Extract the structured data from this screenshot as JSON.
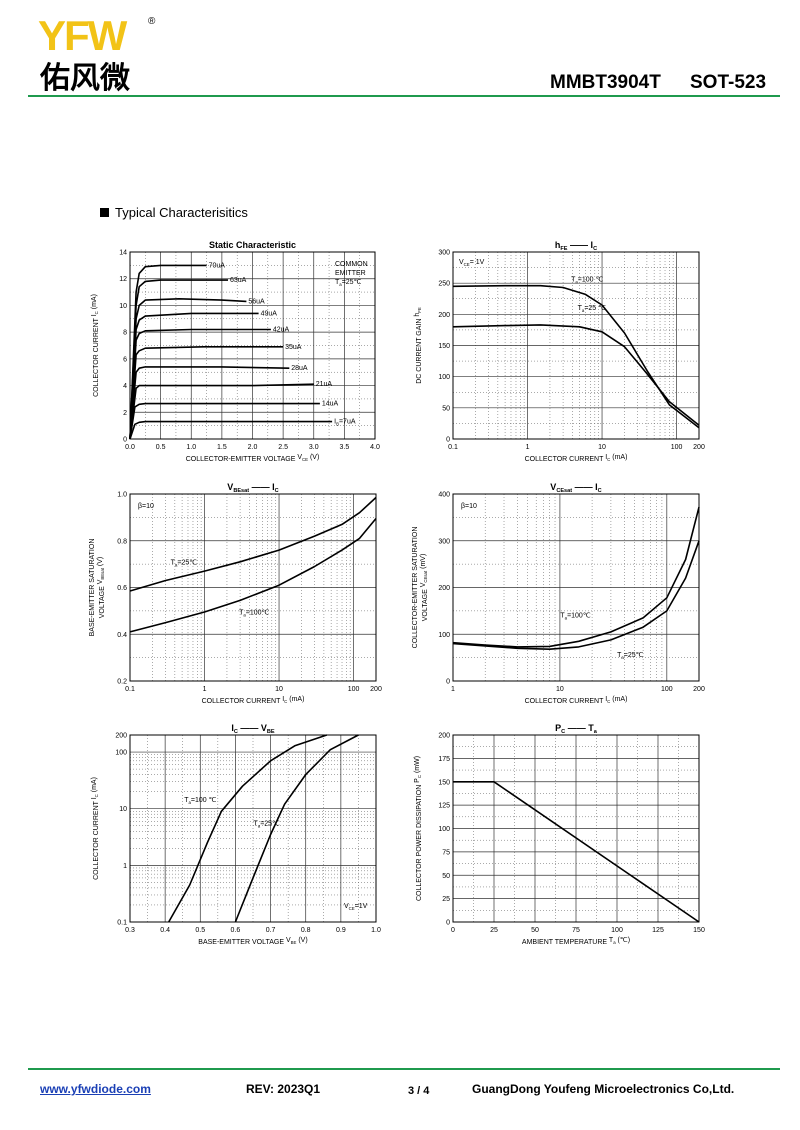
{
  "header": {
    "logo_text": "YFW",
    "logo_cn": "佑风微",
    "registered_mark": "®",
    "part_number": "MMBT3904T",
    "package": "SOT-523"
  },
  "section_title": "Typical  Characterisitics",
  "colors": {
    "brand_green": "#1f9a4e",
    "brand_yellow": "#f2c317",
    "link_blue": "#1a3fb5"
  },
  "footer": {
    "url": "www.yfwdiode.com",
    "rev": "REV: 2023Q1",
    "page": "3 / 4",
    "company": "GuangDong Youfeng Microelectronics Co,Ltd."
  },
  "chart_data": [
    {
      "id": "static",
      "type": "line",
      "title": "Static Characteristic",
      "xlabel": "COLLECTOR-EMITTER VOLTAGE",
      "xlabel_sym": "V",
      "xlabel_sub": "CE",
      "xlabel_unit": "(V)",
      "ylabel": "COLLECTOR CURRENT",
      "ylabel_sym": "I",
      "ylabel_sub": "C",
      "ylabel_unit": "(mA)",
      "xlim": [
        0,
        4
      ],
      "ylim": [
        0,
        14
      ],
      "xticks": [
        "0.0",
        "0.5",
        "1.0",
        "1.5",
        "2.0",
        "2.5",
        "3.0",
        "3.5",
        "4.0"
      ],
      "yticks": [
        "0",
        "2",
        "4",
        "6",
        "8",
        "10",
        "12",
        "14"
      ],
      "annotation_lines": [
        "COMMON",
        "EMITTER",
        "T",
        "=25℃"
      ],
      "annotation_sub": "a",
      "series": [
        {
          "name": "70uA",
          "values": [
            [
              0,
              0
            ],
            [
              0.1,
              11.0
            ],
            [
              0.15,
              12.4
            ],
            [
              0.25,
              12.9
            ],
            [
              0.5,
              13.0
            ],
            [
              1.25,
              13.0
            ]
          ]
        },
        {
          "name": "63uA",
          "values": [
            [
              0,
              0
            ],
            [
              0.1,
              10.0
            ],
            [
              0.15,
              11.4
            ],
            [
              0.25,
              11.8
            ],
            [
              0.5,
              11.9
            ],
            [
              1.6,
              11.9
            ]
          ]
        },
        {
          "name": "56uA",
          "values": [
            [
              0,
              0
            ],
            [
              0.1,
              9.0
            ],
            [
              0.15,
              10.0
            ],
            [
              0.25,
              10.4
            ],
            [
              0.8,
              10.5
            ],
            [
              1.5,
              10.4
            ],
            [
              1.9,
              10.3
            ]
          ]
        },
        {
          "name": "49uA",
          "values": [
            [
              0,
              0
            ],
            [
              0.1,
              8.2
            ],
            [
              0.15,
              8.9
            ],
            [
              0.25,
              9.2
            ],
            [
              1.0,
              9.4
            ],
            [
              2.1,
              9.4
            ]
          ]
        },
        {
          "name": "42uA",
          "values": [
            [
              0,
              0
            ],
            [
              0.1,
              7.4
            ],
            [
              0.15,
              7.9
            ],
            [
              0.25,
              8.1
            ],
            [
              1.0,
              8.2
            ],
            [
              2.3,
              8.2
            ]
          ]
        },
        {
          "name": "35uA",
          "values": [
            [
              0,
              0
            ],
            [
              0.1,
              6.3
            ],
            [
              0.15,
              6.6
            ],
            [
              0.25,
              6.8
            ],
            [
              1.2,
              6.9
            ],
            [
              2.5,
              6.9
            ]
          ]
        },
        {
          "name": "28uA",
          "values": [
            [
              0,
              0
            ],
            [
              0.1,
              5.0
            ],
            [
              0.15,
              5.3
            ],
            [
              0.25,
              5.4
            ],
            [
              1.5,
              5.4
            ],
            [
              2.6,
              5.3
            ]
          ]
        },
        {
          "name": "21uA",
          "values": [
            [
              0,
              0
            ],
            [
              0.1,
              3.8
            ],
            [
              0.15,
              4.0
            ],
            [
              0.25,
              4.0
            ],
            [
              2.0,
              4.0
            ],
            [
              3.0,
              4.1
            ]
          ]
        },
        {
          "name": "14uA",
          "values": [
            [
              0,
              0
            ],
            [
              0.08,
              2.4
            ],
            [
              0.15,
              2.6
            ],
            [
              0.25,
              2.65
            ],
            [
              3.1,
              2.65
            ]
          ]
        },
        {
          "name": "I",
          "sub": "B",
          "suffix": "=7uA",
          "values": [
            [
              0,
              0
            ],
            [
              0.08,
              1.1
            ],
            [
              0.15,
              1.25
            ],
            [
              0.25,
              1.3
            ],
            [
              3.3,
              1.3
            ]
          ]
        }
      ]
    },
    {
      "id": "hfe",
      "type": "line",
      "title": "h",
      "title_sub": "FE",
      "title_dash": "——",
      "title2": "I",
      "title2_sub": "C",
      "xlabel": "COLLECTOR CURRENT",
      "xlabel_sym": "I",
      "xlabel_sub": "C",
      "xlabel_unit": "(mA)",
      "ylabel": "DC CURRENT GAIN",
      "ylabel_sym": "h",
      "ylabel_sub": "FE",
      "xscale": "log",
      "xlim": [
        0.1,
        200
      ],
      "ylim": [
        0,
        300
      ],
      "xticks": [
        "0.1",
        "1",
        "10",
        "100",
        "200"
      ],
      "yticks": [
        "0",
        "50",
        "100",
        "150",
        "200",
        "250",
        "300"
      ],
      "annotation_lines": [
        "V",
        "= 1V"
      ],
      "annotation_sub": "CE",
      "series": [
        {
          "name": "T",
          "sub": "a",
          "suffix": "=100 ℃",
          "values": [
            [
              0.1,
              245
            ],
            [
              0.5,
              246
            ],
            [
              1.5,
              246
            ],
            [
              3,
              243
            ],
            [
              6,
              232
            ],
            [
              10,
              215
            ],
            [
              20,
              170
            ],
            [
              40,
              110
            ],
            [
              80,
              55
            ],
            [
              200,
              18
            ]
          ]
        },
        {
          "name": "T",
          "sub": "a",
          "suffix": "=25 ℃",
          "values": [
            [
              0.1,
              180
            ],
            [
              0.5,
              182
            ],
            [
              1.5,
              183
            ],
            [
              5,
              180
            ],
            [
              10,
              172
            ],
            [
              20,
              148
            ],
            [
              40,
              105
            ],
            [
              80,
              60
            ],
            [
              200,
              22
            ]
          ]
        }
      ]
    },
    {
      "id": "vbesat",
      "type": "line",
      "title": "V",
      "title_sub": "BEsat",
      "title_dash": "——",
      "title2": "I",
      "title2_sub": "C",
      "xlabel": "COLLECTOR CURRENT",
      "xlabel_sym": "I",
      "xlabel_sub": "C",
      "xlabel_unit": "(mA)",
      "ylabel": "BASE-EMITTER SATURATION",
      "ylabel2": "VOLTAGE",
      "ylabel_sym": "V",
      "ylabel_sub": "BEsat",
      "ylabel_unit": "(V)",
      "xscale": "log",
      "xlim": [
        0.1,
        200
      ],
      "ylim": [
        0.2,
        1.0
      ],
      "xticks": [
        "0.1",
        "1",
        "10",
        "100",
        "200"
      ],
      "yticks": [
        "0.2",
        "0.4",
        "0.6",
        "0.8",
        "1.0"
      ],
      "annotation_lines": [
        "β=10"
      ],
      "series": [
        {
          "name": "T",
          "sub": "a",
          "suffix": "=25℃",
          "values": [
            [
              0.1,
              0.585
            ],
            [
              0.3,
              0.63
            ],
            [
              1,
              0.67
            ],
            [
              3,
              0.71
            ],
            [
              10,
              0.76
            ],
            [
              30,
              0.82
            ],
            [
              70,
              0.87
            ],
            [
              120,
              0.92
            ],
            [
              200,
              0.985
            ]
          ]
        },
        {
          "name": "T",
          "sub": "a",
          "suffix": "=100℃",
          "values": [
            [
              0.1,
              0.41
            ],
            [
              0.3,
              0.45
            ],
            [
              1,
              0.495
            ],
            [
              3,
              0.545
            ],
            [
              10,
              0.61
            ],
            [
              30,
              0.69
            ],
            [
              70,
              0.76
            ],
            [
              120,
              0.81
            ],
            [
              200,
              0.895
            ]
          ]
        }
      ]
    },
    {
      "id": "vcesat",
      "type": "line",
      "title": "V",
      "title_sub": "CEsat",
      "title_dash": "——",
      "title2": "I",
      "title2_sub": "C",
      "xlabel": "COLLECTOR CURRENT",
      "xlabel_sym": "I",
      "xlabel_sub": "C",
      "xlabel_unit": "(mA)",
      "ylabel": "COLLECTOR-EMITTER SATURATION",
      "ylabel2": "VOLTAGE",
      "ylabel_sym": "V",
      "ylabel_sub": "CEsat",
      "ylabel_unit": "(mV)",
      "xscale": "log",
      "xlim": [
        1,
        200
      ],
      "ylim": [
        0,
        400
      ],
      "xticks": [
        "1",
        "10",
        "100",
        "200"
      ],
      "yticks": [
        "0",
        "100",
        "200",
        "300",
        "400"
      ],
      "annotation_lines": [
        "β=10"
      ],
      "series": [
        {
          "name": "T",
          "sub": "a",
          "suffix": "=100℃",
          "values": [
            [
              1,
              82
            ],
            [
              2,
              77
            ],
            [
              4,
              73
            ],
            [
              8,
              74
            ],
            [
              15,
              85
            ],
            [
              30,
              105
            ],
            [
              60,
              135
            ],
            [
              100,
              178
            ],
            [
              150,
              260
            ],
            [
              200,
              372
            ]
          ]
        },
        {
          "name": "T",
          "sub": "a",
          "suffix": "=25℃",
          "values": [
            [
              1,
              80
            ],
            [
              2,
              75
            ],
            [
              4,
              70
            ],
            [
              8,
              68
            ],
            [
              15,
              73
            ],
            [
              30,
              88
            ],
            [
              60,
              115
            ],
            [
              100,
              150
            ],
            [
              150,
              220
            ],
            [
              200,
              300
            ]
          ]
        }
      ]
    },
    {
      "id": "icvbe",
      "type": "line",
      "title": "I",
      "title_sub": "C",
      "title_dash": "——",
      "title2": "V",
      "title2_sub": "BE",
      "xlabel": "BASE-EMITTER VOLTAGE",
      "xlabel_sym": "V",
      "xlabel_sub": "BE",
      "xlabel_unit": "(V)",
      "ylabel": "COLLECTOR CURRENT",
      "ylabel_sym": "I",
      "ylabel_sub": "C",
      "ylabel_unit": "(mA)",
      "yscale": "log",
      "xlim": [
        0.3,
        1.0
      ],
      "ylim": [
        0.1,
        200
      ],
      "xticks": [
        "0.3",
        "0.4",
        "0.5",
        "0.6",
        "0.7",
        "0.8",
        "0.9",
        "1.0"
      ],
      "yticks": [
        "0.1",
        "1",
        "10",
        "100",
        "200"
      ],
      "annotation_lines": [
        "V",
        "=1V"
      ],
      "annotation_sub": "CE",
      "series": [
        {
          "name": "T",
          "sub": "a",
          "suffix": "=100 ℃",
          "values": [
            [
              0.41,
              0.1
            ],
            [
              0.47,
              0.45
            ],
            [
              0.52,
              2.5
            ],
            [
              0.56,
              9
            ],
            [
              0.62,
              25
            ],
            [
              0.7,
              70
            ],
            [
              0.77,
              130
            ],
            [
              0.86,
              200
            ]
          ]
        },
        {
          "name": "T",
          "sub": "a",
          "suffix": "=25℃",
          "values": [
            [
              0.6,
              0.1
            ],
            [
              0.65,
              0.6
            ],
            [
              0.7,
              3.5
            ],
            [
              0.74,
              12
            ],
            [
              0.8,
              40
            ],
            [
              0.87,
              110
            ],
            [
              0.95,
              200
            ]
          ]
        }
      ]
    },
    {
      "id": "pcta",
      "type": "line",
      "title": "P",
      "title_sub": "C",
      "title_dash": "——",
      "title2": "T",
      "title2_sub": "a",
      "xlabel": "AMBIENT TEMPERATURE",
      "xlabel_sym": "T",
      "xlabel_sub": "a",
      "xlabel_unit": "(℃)",
      "ylabel": "COLLECTOR POWER DISSIPATION",
      "ylabel_sym": "P",
      "ylabel_sub": "C",
      "ylabel_unit": "(mW)",
      "xlim": [
        0,
        150
      ],
      "ylim": [
        0,
        200
      ],
      "xticks": [
        "0",
        "25",
        "50",
        "75",
        "100",
        "125",
        "150"
      ],
      "yticks": [
        "0",
        "25",
        "50",
        "75",
        "100",
        "125",
        "150",
        "175",
        "200"
      ],
      "series": [
        {
          "name": "",
          "values": [
            [
              0,
              150
            ],
            [
              25,
              150
            ],
            [
              150,
              0
            ]
          ]
        }
      ]
    }
  ]
}
